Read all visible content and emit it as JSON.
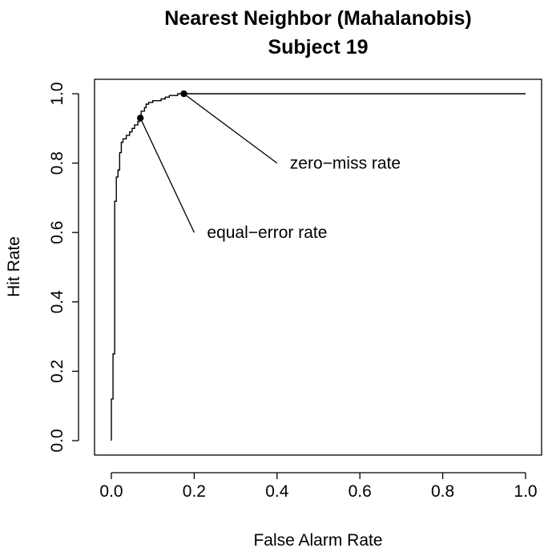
{
  "chart_data": {
    "type": "line",
    "title": [
      "Nearest Neighbor (Mahalanobis)",
      "Subject 19"
    ],
    "xlabel": "False Alarm Rate",
    "ylabel": "Hit Rate",
    "xlim": [
      0,
      1
    ],
    "ylim": [
      0,
      1
    ],
    "x_ticks": [
      0.0,
      0.2,
      0.4,
      0.6,
      0.8,
      1.0
    ],
    "x_tick_labels": [
      "0.0",
      "0.2",
      "0.4",
      "0.6",
      "0.8",
      "1.0"
    ],
    "y_ticks": [
      0.0,
      0.2,
      0.4,
      0.6,
      0.8,
      1.0
    ],
    "y_tick_labels": [
      "0.0",
      "0.2",
      "0.4",
      "0.6",
      "0.8",
      "1.0"
    ],
    "grid": false,
    "series": [
      {
        "style": "step",
        "color": "#000000",
        "points": [
          [
            0.0,
            0.0
          ],
          [
            0.0,
            0.12
          ],
          [
            0.004,
            0.12
          ],
          [
            0.004,
            0.25
          ],
          [
            0.008,
            0.25
          ],
          [
            0.008,
            0.69
          ],
          [
            0.012,
            0.69
          ],
          [
            0.012,
            0.76
          ],
          [
            0.016,
            0.76
          ],
          [
            0.016,
            0.78
          ],
          [
            0.02,
            0.78
          ],
          [
            0.02,
            0.83
          ],
          [
            0.024,
            0.83
          ],
          [
            0.024,
            0.86
          ],
          [
            0.028,
            0.86
          ],
          [
            0.028,
            0.87
          ],
          [
            0.036,
            0.87
          ],
          [
            0.036,
            0.88
          ],
          [
            0.044,
            0.88
          ],
          [
            0.044,
            0.89
          ],
          [
            0.05,
            0.89
          ],
          [
            0.05,
            0.9
          ],
          [
            0.056,
            0.9
          ],
          [
            0.056,
            0.91
          ],
          [
            0.064,
            0.91
          ],
          [
            0.064,
            0.92
          ],
          [
            0.068,
            0.92
          ],
          [
            0.068,
            0.93
          ],
          [
            0.072,
            0.93
          ],
          [
            0.072,
            0.95
          ],
          [
            0.08,
            0.95
          ],
          [
            0.08,
            0.96
          ],
          [
            0.084,
            0.96
          ],
          [
            0.084,
            0.97
          ],
          [
            0.09,
            0.97
          ],
          [
            0.09,
            0.975
          ],
          [
            0.1,
            0.975
          ],
          [
            0.1,
            0.98
          ],
          [
            0.12,
            0.98
          ],
          [
            0.12,
            0.985
          ],
          [
            0.13,
            0.985
          ],
          [
            0.13,
            0.99
          ],
          [
            0.14,
            0.99
          ],
          [
            0.14,
            0.995
          ],
          [
            0.16,
            0.995
          ],
          [
            0.16,
            1.0
          ],
          [
            1.0,
            1.0
          ]
        ]
      }
    ],
    "annotations": [
      {
        "label": "equal−error rate",
        "point": [
          0.07,
          0.93
        ],
        "text_anchor_point": [
          0.2,
          0.6
        ]
      },
      {
        "label": "zero−miss rate",
        "point": [
          0.175,
          1.0
        ],
        "text_anchor_point": [
          0.4,
          0.8
        ]
      }
    ]
  }
}
